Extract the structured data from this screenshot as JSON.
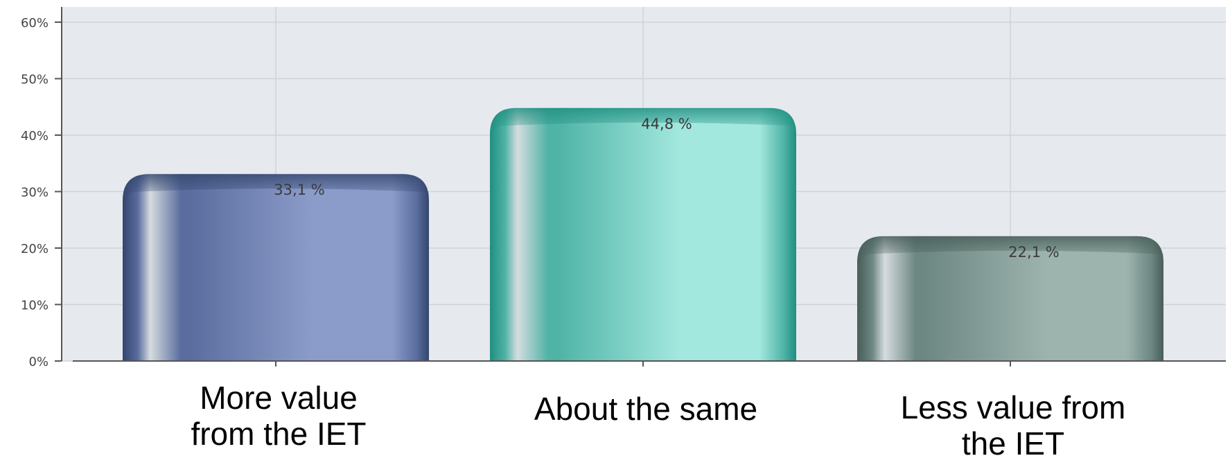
{
  "chart_data": {
    "type": "bar",
    "categories": [
      [
        "More value",
        "from the IET"
      ],
      [
        "About the same"
      ],
      [
        "Less value from",
        "the IET"
      ]
    ],
    "values": [
      33.1,
      44.8,
      22.1
    ],
    "data_labels": [
      "33,1 %",
      "44,8 %",
      "22,1 %"
    ],
    "ylim": [
      0,
      60
    ],
    "yticks": [
      0,
      10,
      20,
      30,
      40,
      50,
      60
    ],
    "ytick_labels": [
      "0%",
      "10%",
      "20%",
      "30%",
      "40%",
      "50%",
      "60%"
    ],
    "grid": true,
    "colors": [
      {
        "dark": "#34466e",
        "mid": "#5a6d9e",
        "light": "#8c9cca"
      },
      {
        "dark": "#1f8f80",
        "mid": "#4fb3a6",
        "light": "#a3e8df"
      },
      {
        "dark": "#475d58",
        "mid": "#6d8782",
        "light": "#9db3ae"
      }
    ],
    "plot_background": "#e6e9ed",
    "grid_color": "#cfd3d8"
  }
}
